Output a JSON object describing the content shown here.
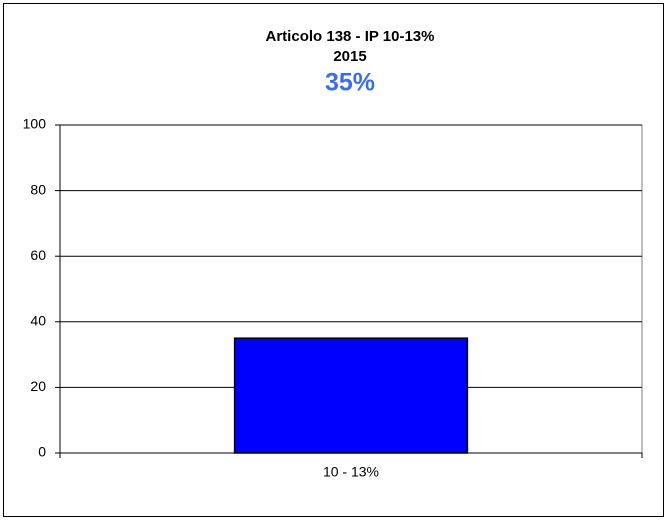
{
  "chart_data": {
    "type": "bar",
    "title": "Articolo 138 - IP 10-13%",
    "subtitle": "2015",
    "categories": [
      "10 - 13%"
    ],
    "values": [
      35
    ],
    "value_labels": [
      "35%"
    ],
    "color": "#0000ff",
    "ylim": [
      0,
      100
    ],
    "yticks": [
      0,
      20,
      40,
      60,
      80,
      100
    ],
    "grid": true
  }
}
